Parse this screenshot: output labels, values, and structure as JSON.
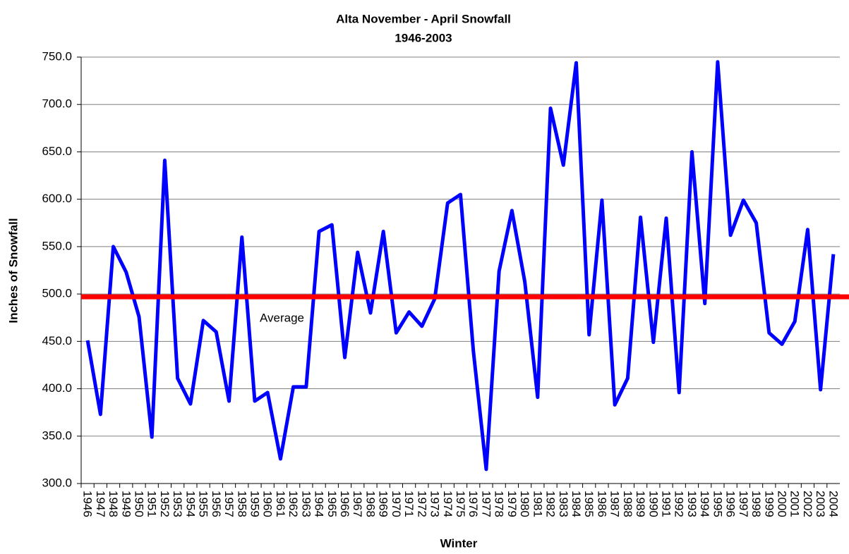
{
  "chart_data": {
    "type": "line",
    "title": "Alta November - April Snowfall",
    "subtitle": "1946-2003",
    "x_label": "Winter",
    "y_label": "Inches of Snowfall",
    "categories": [
      "1946",
      "1947",
      "1948",
      "1949",
      "1950",
      "1951",
      "1952",
      "1953",
      "1954",
      "1955",
      "1956",
      "1957",
      "1958",
      "1959",
      "1960",
      "1961",
      "1962",
      "1963",
      "1964",
      "1965",
      "1966",
      "1967",
      "1968",
      "1969",
      "1970",
      "1971",
      "1972",
      "1973",
      "1974",
      "1975",
      "1976",
      "1977",
      "1978",
      "1979",
      "1980",
      "1981",
      "1982",
      "1983",
      "1984",
      "1985",
      "1986",
      "1987",
      "1988",
      "1989",
      "1990",
      "1991",
      "1992",
      "1993",
      "1994",
      "1995",
      "1996",
      "1997",
      "1998",
      "1999",
      "2000",
      "2001",
      "2002",
      "2003",
      "2004"
    ],
    "series": [
      {
        "color": "#0000ff",
        "values": [
          451,
          373,
          550,
          523,
          476,
          349,
          641,
          411,
          384,
          472,
          460,
          387,
          560,
          387,
          396,
          326,
          402,
          402,
          566,
          573,
          433,
          544,
          480,
          566,
          459,
          481,
          466,
          495,
          596,
          605,
          440,
          315,
          524,
          588,
          513,
          391,
          696,
          636,
          744,
          457,
          599,
          383,
          411,
          581,
          449,
          580,
          396,
          650,
          490,
          745,
          562,
          599,
          575,
          459,
          447,
          471,
          568,
          399,
          542
        ]
      }
    ],
    "average": {
      "value": 497,
      "label": "Average",
      "color": "#ff0000"
    },
    "ylim": [
      300,
      750
    ],
    "yticks": [
      {
        "value": 300,
        "label": "300.0"
      },
      {
        "value": 350,
        "label": "350.0"
      },
      {
        "value": 400,
        "label": "400.0"
      },
      {
        "value": 450,
        "label": "450.0"
      },
      {
        "value": 500,
        "label": "500.0"
      },
      {
        "value": 550,
        "label": "550.0"
      },
      {
        "value": 600,
        "label": "600.0"
      },
      {
        "value": 650,
        "label": "650.0"
      },
      {
        "value": 700,
        "label": "700.0"
      },
      {
        "value": 750,
        "label": "750.0"
      }
    ],
    "grid": true
  }
}
